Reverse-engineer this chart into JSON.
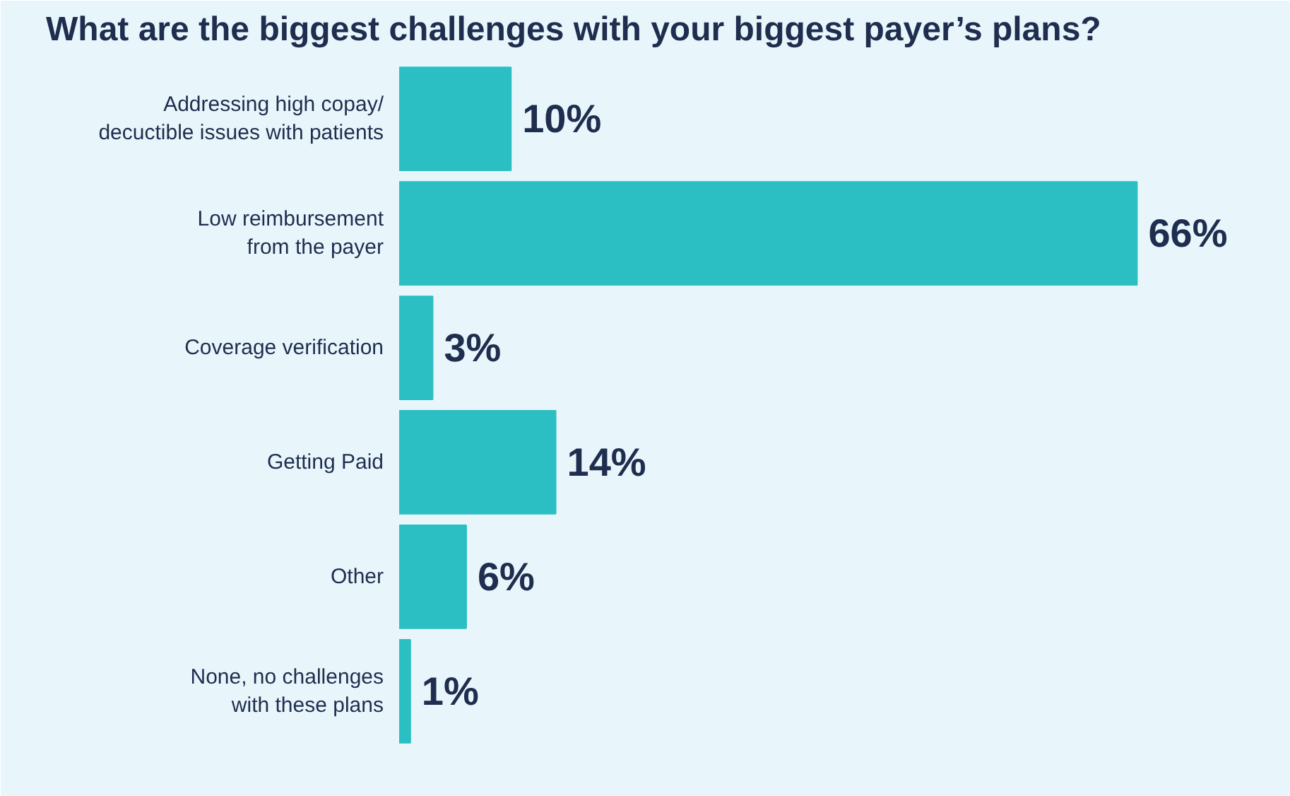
{
  "chart_data": {
    "type": "bar",
    "orientation": "horizontal",
    "title": "What are the biggest challenges with your biggest payer’s plans?",
    "categories": [
      "Addressing high copay/\ndecuctible issues with patients",
      "Low reimbursement\nfrom the payer",
      "Coverage verification",
      "Getting Paid",
      "Other",
      "None, no challenges\nwith these plans"
    ],
    "values": [
      10,
      66,
      3,
      14,
      6,
      1
    ],
    "value_labels": [
      "10%",
      "66%",
      "3%",
      "14%",
      "6%",
      "1%"
    ],
    "color": "#2bbfc4",
    "grid": false
  }
}
